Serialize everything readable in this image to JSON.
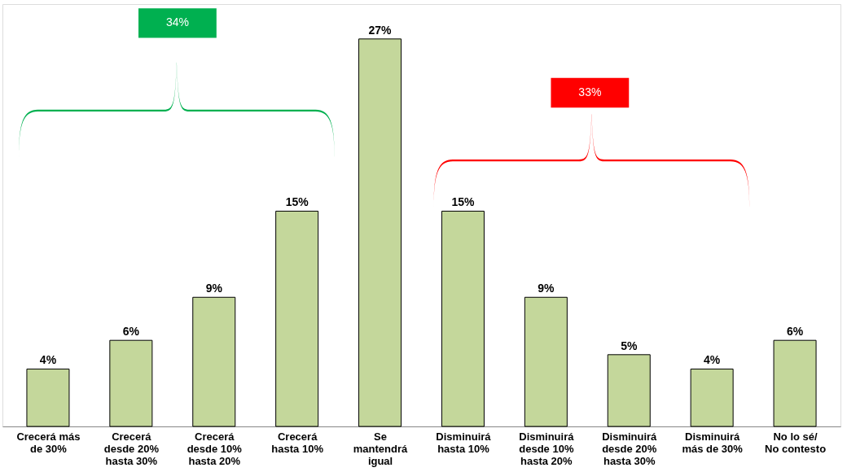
{
  "chart_data": {
    "type": "bar",
    "categories": [
      "Crecerá más de 30%",
      "Crecerá desde 20% hasta 30%",
      "Crecerá desde 10% hasta 20%",
      "Crecerá hasta 10%",
      "Se mantendrá igual",
      "Disminuirá hasta 10%",
      "Disminuirá desde 10% hasta 20%",
      "Disminuirá desde 20% hasta 30%",
      "Disminuirá más de 30%",
      "No lo sé/ No contesto"
    ],
    "values": [
      4,
      6,
      9,
      15,
      27,
      15,
      9,
      5,
      4,
      6
    ],
    "value_labels": [
      "4%",
      "6%",
      "9%",
      "15%",
      "27%",
      "15%",
      "9%",
      "5%",
      "4%",
      "6%"
    ],
    "color": "#c4d79b",
    "annotations": [
      "34%",
      "33%"
    ],
    "tick_labels": "x",
    "grid": false
  }
}
